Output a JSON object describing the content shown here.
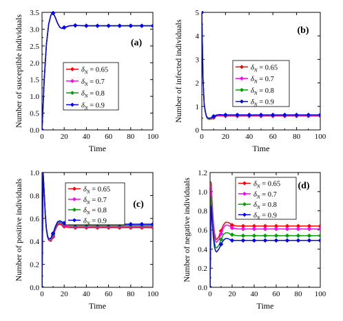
{
  "chart_data": [
    {
      "type": "line",
      "panel_tag": "(a)",
      "xlabel": "Time",
      "ylabel": "Number of susceptible individuals",
      "xlim": [
        0,
        100
      ],
      "ylim": [
        0,
        3.5
      ],
      "xticks": [
        0,
        20,
        40,
        60,
        80,
        100
      ],
      "yticks": [
        "0.0",
        "0.5",
        "1.0",
        "1.5",
        "2.0",
        "2.5",
        "3.0",
        "3.5"
      ],
      "legend_loc": "center",
      "x": [
        0,
        2,
        4,
        6,
        8,
        10,
        12,
        14,
        16,
        18,
        20,
        25,
        30,
        40,
        50,
        60,
        70,
        80,
        90,
        100
      ],
      "series": [
        {
          "name": "δN = 0.65",
          "sym": "δ",
          "sub": "N",
          "val": " = 0.65",
          "color": "#ff0000",
          "values": [
            0,
            1.5,
            2.55,
            3.15,
            3.42,
            3.48,
            3.35,
            3.18,
            3.06,
            3.02,
            3.05,
            3.1,
            3.11,
            3.1,
            3.1,
            3.1,
            3.1,
            3.1,
            3.1,
            3.1
          ]
        },
        {
          "name": "δN = 0.7",
          "sym": "δ",
          "sub": "N",
          "val": " = 0.7",
          "color": "#ff00ff",
          "values": [
            0,
            1.5,
            2.55,
            3.15,
            3.42,
            3.48,
            3.35,
            3.18,
            3.06,
            3.02,
            3.05,
            3.1,
            3.11,
            3.1,
            3.1,
            3.1,
            3.1,
            3.1,
            3.1,
            3.1
          ]
        },
        {
          "name": "δN = 0.8",
          "sym": "δ",
          "sub": "N",
          "val": " = 0.8",
          "color": "#00a000",
          "values": [
            0,
            1.5,
            2.55,
            3.15,
            3.42,
            3.48,
            3.35,
            3.18,
            3.06,
            3.02,
            3.05,
            3.1,
            3.11,
            3.1,
            3.1,
            3.1,
            3.1,
            3.1,
            3.1,
            3.1
          ]
        },
        {
          "name": "δN = 0.9",
          "sym": "δ",
          "sub": "N",
          "val": " = 0.9",
          "color": "#0000ff",
          "values": [
            0,
            1.5,
            2.55,
            3.15,
            3.42,
            3.48,
            3.35,
            3.18,
            3.06,
            3.02,
            3.05,
            3.1,
            3.11,
            3.1,
            3.1,
            3.1,
            3.1,
            3.1,
            3.1,
            3.1
          ]
        }
      ]
    },
    {
      "type": "line",
      "panel_tag": "(b)",
      "xlabel": "Time",
      "ylabel": "Number of infected individuals",
      "xlim": [
        0,
        100
      ],
      "ylim": [
        0,
        5
      ],
      "xticks": [
        0,
        20,
        40,
        60,
        80,
        100
      ],
      "yticks": [
        "0",
        "1",
        "2",
        "3",
        "4",
        "5"
      ],
      "legend_loc": "center-right",
      "x": [
        0,
        1,
        2,
        3,
        4,
        5,
        6,
        8,
        10,
        12,
        14,
        16,
        18,
        20,
        30,
        40,
        50,
        60,
        70,
        80,
        90,
        100
      ],
      "series": [
        {
          "name": "δN = 0.65",
          "sym": "δ",
          "sub": "N",
          "val": " = 0.65",
          "color": "#ff0000",
          "values": [
            5,
            2.2,
            1.1,
            0.75,
            0.55,
            0.47,
            0.45,
            0.46,
            0.52,
            0.58,
            0.6,
            0.6,
            0.59,
            0.59,
            0.59,
            0.59,
            0.59,
            0.59,
            0.59,
            0.59,
            0.59,
            0.59
          ]
        },
        {
          "name": "δN = 0.7",
          "sym": "δ",
          "sub": "N",
          "val": " = 0.7",
          "color": "#ff00ff",
          "values": [
            5,
            2.2,
            1.1,
            0.75,
            0.56,
            0.48,
            0.46,
            0.48,
            0.54,
            0.6,
            0.62,
            0.62,
            0.61,
            0.61,
            0.61,
            0.61,
            0.61,
            0.61,
            0.61,
            0.61,
            0.61,
            0.61
          ]
        },
        {
          "name": "δN = 0.8",
          "sym": "δ",
          "sub": "N",
          "val": " = 0.8",
          "color": "#00a000",
          "values": [
            5,
            2.2,
            1.1,
            0.76,
            0.57,
            0.5,
            0.48,
            0.5,
            0.56,
            0.62,
            0.64,
            0.64,
            0.63,
            0.63,
            0.63,
            0.63,
            0.63,
            0.63,
            0.63,
            0.63,
            0.63,
            0.63
          ]
        },
        {
          "name": "δN = 0.9",
          "sym": "δ",
          "sub": "N",
          "val": " = 0.9",
          "color": "#0000ff",
          "values": [
            5,
            2.2,
            1.1,
            0.77,
            0.58,
            0.51,
            0.5,
            0.52,
            0.58,
            0.63,
            0.65,
            0.65,
            0.64,
            0.64,
            0.64,
            0.64,
            0.64,
            0.64,
            0.64,
            0.64,
            0.64,
            0.64
          ]
        }
      ]
    },
    {
      "type": "line",
      "panel_tag": "(c)",
      "xlabel": "Time",
      "ylabel": "Number of positive individuals",
      "xlim": [
        0,
        100
      ],
      "ylim": [
        0,
        1.0
      ],
      "xticks": [
        0,
        20,
        40,
        60,
        80,
        100
      ],
      "yticks": [
        "0.0",
        "0.2",
        "0.4",
        "0.6",
        "0.8",
        "1.0"
      ],
      "legend_loc": "top-right",
      "x": [
        0,
        1,
        2,
        3,
        4,
        5,
        6,
        8,
        10,
        12,
        14,
        16,
        18,
        20,
        25,
        30,
        40,
        50,
        60,
        70,
        80,
        90,
        100
      ],
      "series": [
        {
          "name": "δN = 0.65",
          "sym": "δ",
          "sub": "N",
          "val": " = 0.65",
          "color": "#ff0000",
          "values": [
            0,
            1.0,
            0.82,
            0.62,
            0.5,
            0.44,
            0.41,
            0.4,
            0.44,
            0.5,
            0.54,
            0.55,
            0.54,
            0.53,
            0.52,
            0.52,
            0.52,
            0.52,
            0.52,
            0.52,
            0.52,
            0.52,
            0.52
          ]
        },
        {
          "name": "δN = 0.7",
          "sym": "δ",
          "sub": "N",
          "val": " = 0.7",
          "color": "#ff00ff",
          "values": [
            0,
            1.0,
            0.82,
            0.62,
            0.5,
            0.44,
            0.41,
            0.41,
            0.45,
            0.51,
            0.55,
            0.56,
            0.55,
            0.54,
            0.53,
            0.53,
            0.53,
            0.53,
            0.53,
            0.53,
            0.53,
            0.53,
            0.53
          ]
        },
        {
          "name": "δN = 0.8",
          "sym": "δ",
          "sub": "N",
          "val": " = 0.8",
          "color": "#00a000",
          "values": [
            0,
            1.0,
            0.82,
            0.63,
            0.51,
            0.45,
            0.42,
            0.42,
            0.46,
            0.52,
            0.56,
            0.57,
            0.56,
            0.55,
            0.54,
            0.54,
            0.54,
            0.54,
            0.54,
            0.54,
            0.54,
            0.54,
            0.54
          ]
        },
        {
          "name": "δN = 0.9",
          "sym": "δ",
          "sub": "N",
          "val": " = 0.9",
          "color": "#0000ff",
          "values": [
            0,
            1.0,
            0.82,
            0.63,
            0.51,
            0.45,
            0.42,
            0.43,
            0.47,
            0.53,
            0.57,
            0.58,
            0.57,
            0.56,
            0.55,
            0.55,
            0.55,
            0.55,
            0.55,
            0.55,
            0.55,
            0.55,
            0.55
          ]
        }
      ]
    },
    {
      "type": "line",
      "panel_tag": "(d)",
      "xlabel": "Time",
      "ylabel": "Number of negative individuals",
      "xlim": [
        0,
        100
      ],
      "ylim": [
        0,
        1.2
      ],
      "xticks": [
        0,
        20,
        40,
        60,
        80,
        100
      ],
      "yticks": [
        "0.0",
        "0.2",
        "0.4",
        "0.6",
        "0.8",
        "1.0",
        "1.2"
      ],
      "legend_loc": "top-right",
      "x": [
        0,
        1,
        2,
        3,
        4,
        5,
        6,
        8,
        10,
        12,
        14,
        16,
        18,
        20,
        25,
        30,
        40,
        50,
        60,
        70,
        80,
        90,
        100
      ],
      "series": [
        {
          "name": "δN = 0.65",
          "sym": "δ",
          "sub": "N",
          "val": " = 0.65",
          "color": "#ff0000",
          "values": [
            0,
            1.09,
            0.86,
            0.68,
            0.57,
            0.51,
            0.5,
            0.53,
            0.59,
            0.65,
            0.68,
            0.68,
            0.67,
            0.65,
            0.64,
            0.64,
            0.64,
            0.64,
            0.64,
            0.64,
            0.64,
            0.64,
            0.64
          ]
        },
        {
          "name": "δN = 0.7",
          "sym": "δ",
          "sub": "N",
          "val": " = 0.7",
          "color": "#ff00ff",
          "values": [
            0,
            1.05,
            0.83,
            0.65,
            0.53,
            0.48,
            0.47,
            0.5,
            0.56,
            0.62,
            0.65,
            0.65,
            0.64,
            0.62,
            0.61,
            0.61,
            0.61,
            0.61,
            0.61,
            0.61,
            0.61,
            0.61,
            0.61
          ]
        },
        {
          "name": "δN = 0.8",
          "sym": "δ",
          "sub": "N",
          "val": " = 0.8",
          "color": "#00a000",
          "values": [
            0,
            0.95,
            0.75,
            0.58,
            0.47,
            0.42,
            0.41,
            0.44,
            0.5,
            0.55,
            0.57,
            0.57,
            0.56,
            0.55,
            0.54,
            0.54,
            0.54,
            0.54,
            0.54,
            0.54,
            0.54,
            0.54,
            0.54
          ]
        },
        {
          "name": "δN = 0.9",
          "sym": "δ",
          "sub": "N",
          "val": " = 0.9",
          "color": "#0000ff",
          "values": [
            0,
            0.85,
            0.67,
            0.52,
            0.42,
            0.38,
            0.37,
            0.4,
            0.45,
            0.49,
            0.51,
            0.51,
            0.5,
            0.49,
            0.49,
            0.49,
            0.49,
            0.49,
            0.49,
            0.49,
            0.49,
            0.49,
            0.49
          ]
        }
      ]
    }
  ]
}
